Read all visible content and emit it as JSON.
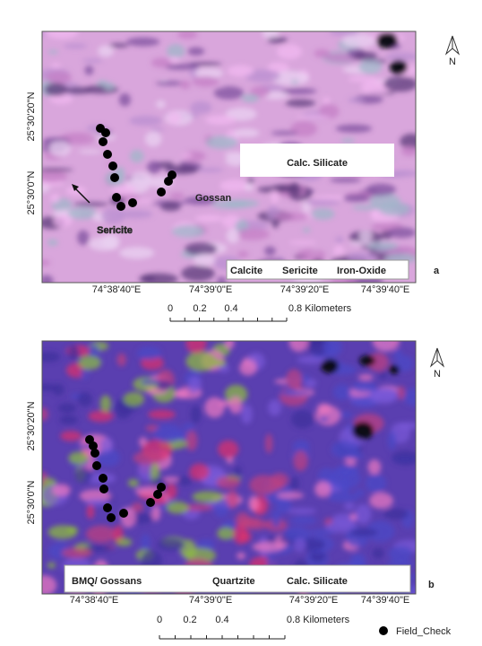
{
  "panels": [
    {
      "label": "a",
      "north": "N",
      "latitude_labels": [
        "25°30'20\"N",
        "25°30'0\"N"
      ],
      "longitude_labels": [
        "74°38'40\"E",
        "74°39'0\"E",
        "74°39'20\"E",
        "74°39'40\"E"
      ],
      "scale_labels": [
        "0",
        "0.2",
        "0.4",
        "0.8 Kilometers"
      ],
      "legend": [
        "Calcite",
        "Sericite",
        "Iron-Oxide"
      ],
      "annotations": [
        "Calc. Silicate",
        "Gossan",
        "Sericite"
      ]
    },
    {
      "label": "b",
      "north": "N",
      "latitude_labels": [
        "25°30'20\"N",
        "25°30'0\"N"
      ],
      "longitude_labels": [
        "74°38'40\"E",
        "74°39'0\"E",
        "74°39'20\"E",
        "74°39'40\"E"
      ],
      "scale_labels": [
        "0",
        "0.2",
        "0.4",
        "0.8 Kilometers"
      ],
      "legend": [
        "BMQ/ Gossans",
        "Quartzite",
        "Calc. Silicate"
      ]
    }
  ],
  "field_check_legend": "Field_Check"
}
